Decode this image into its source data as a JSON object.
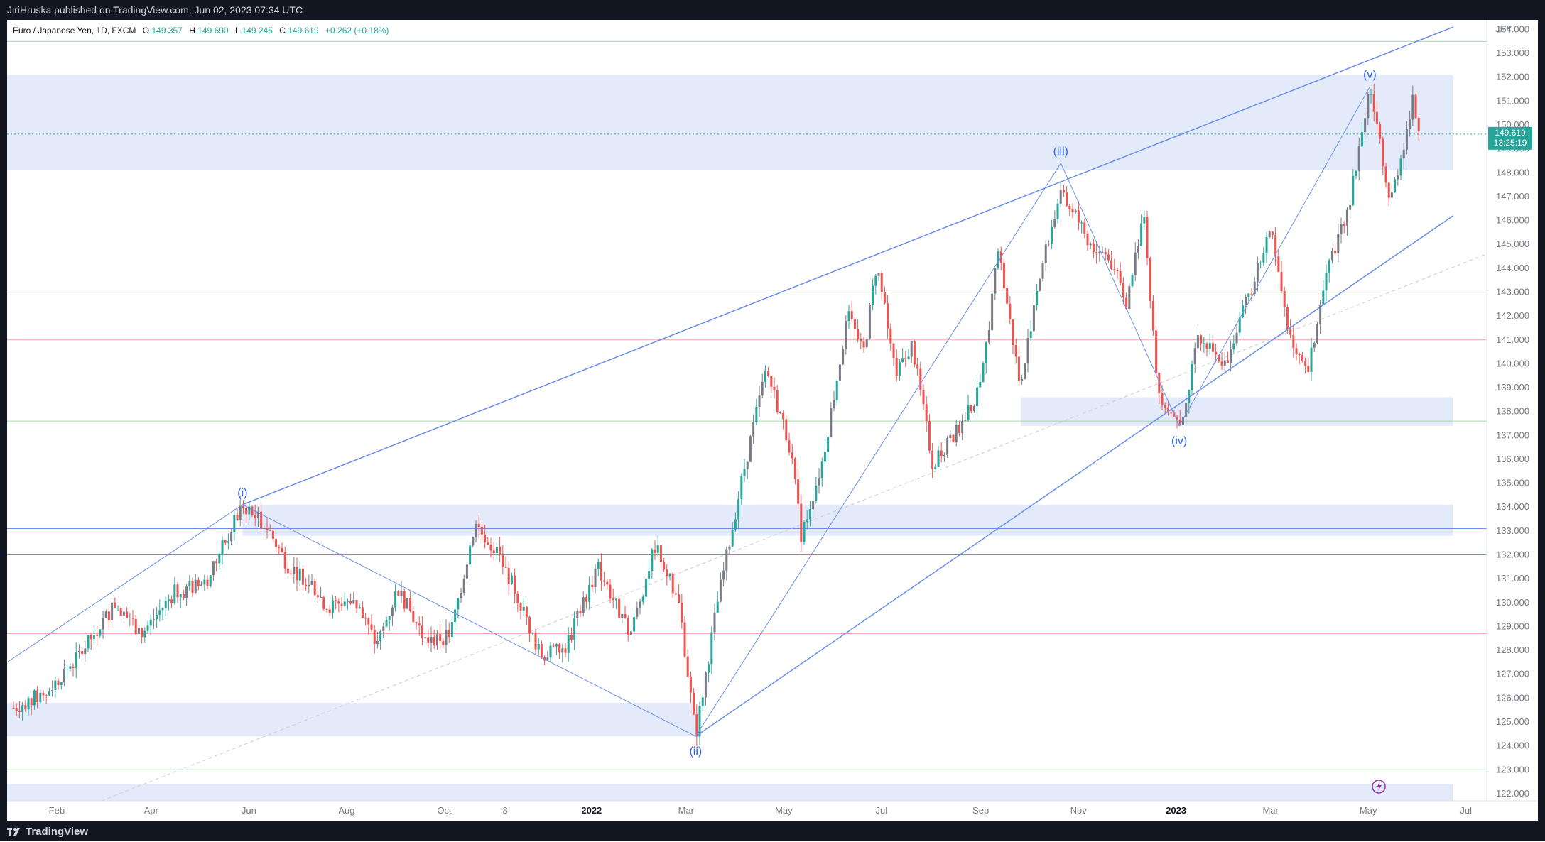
{
  "header": {
    "publisher_line": "JiriHruska published on TradingView.com, Jun 02, 2023 07:34 UTC"
  },
  "footer": {
    "brand": "TradingView"
  },
  "symbol": {
    "name": "Euro / Japanese Yen, 1D, FXCM",
    "open_label": "O",
    "open": "149.357",
    "high_label": "H",
    "high": "149.690",
    "low_label": "L",
    "low": "149.245",
    "close_label": "C",
    "close": "149.619",
    "change": "+0.262 (+0.18%)"
  },
  "currency": "JPY",
  "last_price_label": {
    "price": "149.619",
    "countdown": "13:25:19"
  },
  "colors": {
    "up": "#26a69a",
    "down": "#ef5350",
    "neutral_candle": "#787b86",
    "wave_line": "#6b8ee8",
    "zone_fill": "#e3ebfb",
    "last_price": "#26a69a"
  },
  "chart_data": {
    "type": "candlestick",
    "title": "Euro / Japanese Yen, 1D, FXCM",
    "y_axis_ticks": [
      "154.000",
      "153.000",
      "152.000",
      "151.000",
      "150.000",
      "149.000",
      "148.000",
      "147.000",
      "146.000",
      "145.000",
      "144.000",
      "143.000",
      "142.000",
      "141.000",
      "140.000",
      "139.000",
      "138.000",
      "137.000",
      "136.000",
      "135.000",
      "134.000",
      "133.000",
      "132.000",
      "131.000",
      "130.000",
      "129.000",
      "128.000",
      "127.000",
      "126.000",
      "125.000",
      "124.000",
      "123.000",
      "122.000"
    ],
    "ylim": [
      121.7,
      154.4
    ],
    "x_axis_ticks": [
      {
        "label": "Feb",
        "date": "2021-02-01",
        "bold": false
      },
      {
        "label": "Apr",
        "date": "2021-04-01",
        "bold": false
      },
      {
        "label": "Jun",
        "date": "2021-06-01",
        "bold": false
      },
      {
        "label": "Aug",
        "date": "2021-08-01",
        "bold": false
      },
      {
        "label": "Oct",
        "date": "2021-10-01",
        "bold": false
      },
      {
        "label": "8",
        "date": "2021-11-08",
        "bold": false
      },
      {
        "label": "2022",
        "date": "2022-01-01",
        "bold": true
      },
      {
        "label": "Mar",
        "date": "2022-03-01",
        "bold": false
      },
      {
        "label": "May",
        "date": "2022-05-01",
        "bold": false
      },
      {
        "label": "Jul",
        "date": "2022-07-01",
        "bold": false
      },
      {
        "label": "Sep",
        "date": "2022-09-01",
        "bold": false
      },
      {
        "label": "Nov",
        "date": "2022-11-01",
        "bold": false
      },
      {
        "label": "2023",
        "date": "2023-01-01",
        "bold": true
      },
      {
        "label": "Mar",
        "date": "2023-03-01",
        "bold": false
      },
      {
        "label": "May",
        "date": "2023-05-01",
        "bold": false
      },
      {
        "label": "Jul",
        "date": "2023-07-01",
        "bold": false
      }
    ],
    "price_path": [
      [
        "2021-01-05",
        125.6
      ],
      [
        "2021-01-25",
        126.2
      ],
      [
        "2021-02-15",
        127.8
      ],
      [
        "2021-03-10",
        130.0
      ],
      [
        "2021-03-25",
        128.6
      ],
      [
        "2021-04-15",
        130.4
      ],
      [
        "2021-05-05",
        130.8
      ],
      [
        "2021-05-28",
        134.1
      ],
      [
        "2021-06-12",
        133.2
      ],
      [
        "2021-06-25",
        131.6
      ],
      [
        "2021-07-10",
        130.8
      ],
      [
        "2021-07-20",
        129.8
      ],
      [
        "2021-08-05",
        130.2
      ],
      [
        "2021-08-20",
        128.2
      ],
      [
        "2021-09-02",
        130.6
      ],
      [
        "2021-09-20",
        128.3
      ],
      [
        "2021-10-05",
        128.7
      ],
      [
        "2021-10-20",
        133.3
      ],
      [
        "2021-11-02",
        132.2
      ],
      [
        "2021-11-15",
        130.4
      ],
      [
        "2021-11-30",
        127.8
      ],
      [
        "2021-12-15",
        128.0
      ],
      [
        "2022-01-05",
        131.5
      ],
      [
        "2022-01-25",
        128.6
      ],
      [
        "2022-02-10",
        132.5
      ],
      [
        "2022-02-25",
        129.8
      ],
      [
        "2022-03-07",
        124.4
      ],
      [
        "2022-03-20",
        129.8
      ],
      [
        "2022-04-05",
        135.2
      ],
      [
        "2022-04-20",
        139.8
      ],
      [
        "2022-05-05",
        136.5
      ],
      [
        "2022-05-12",
        132.8
      ],
      [
        "2022-05-25",
        135.9
      ],
      [
        "2022-06-10",
        142.0
      ],
      [
        "2022-06-20",
        140.5
      ],
      [
        "2022-06-28",
        144.2
      ],
      [
        "2022-07-10",
        139.5
      ],
      [
        "2022-07-20",
        140.8
      ],
      [
        "2022-08-02",
        135.8
      ],
      [
        "2022-08-18",
        137.2
      ],
      [
        "2022-09-01",
        139.0
      ],
      [
        "2022-09-12",
        144.8
      ],
      [
        "2022-09-26",
        138.9
      ],
      [
        "2022-10-05",
        142.9
      ],
      [
        "2022-10-20",
        147.0
      ],
      [
        "2022-10-28",
        146.5
      ],
      [
        "2022-11-10",
        144.8
      ],
      [
        "2022-11-20",
        144.5
      ],
      [
        "2022-12-01",
        142.5
      ],
      [
        "2022-12-12",
        146.5
      ],
      [
        "2022-12-20",
        139.0
      ],
      [
        "2023-01-03",
        137.4
      ],
      [
        "2023-01-15",
        141.0
      ],
      [
        "2023-02-01",
        140.0
      ],
      [
        "2023-02-15",
        142.8
      ],
      [
        "2023-03-01",
        145.6
      ],
      [
        "2023-03-15",
        140.5
      ],
      [
        "2023-03-24",
        139.5
      ],
      [
        "2023-04-05",
        143.8
      ],
      [
        "2023-04-20",
        147.0
      ],
      [
        "2023-05-02",
        151.6
      ],
      [
        "2023-05-15",
        146.8
      ],
      [
        "2023-05-29",
        151.0
      ],
      [
        "2023-06-02",
        149.6
      ]
    ],
    "annotations": [
      {
        "label": "(i)",
        "date": "2021-05-28",
        "price": 134.1
      },
      {
        "label": "(ii)",
        "date": "2022-03-07",
        "price": 124.4
      },
      {
        "label": "(iii)",
        "date": "2022-10-21",
        "price": 148.4
      },
      {
        "label": "(iv)",
        "date": "2023-01-03",
        "price": 137.4
      },
      {
        "label": "(v)",
        "date": "2023-05-02",
        "price": 151.6
      }
    ],
    "channel_lines": [
      {
        "from": [
          "2021-05-28",
          134.1
        ],
        "to": [
          "2023-06-23",
          154.1
        ]
      },
      {
        "from": [
          "2022-03-07",
          124.4
        ],
        "to": [
          "2023-06-23",
          146.2
        ]
      }
    ],
    "zones": [
      {
        "from_date": "2021-01-01",
        "to_date": "2023-06-23",
        "low": 148.1,
        "high": 152.1
      },
      {
        "from_date": "2021-05-28",
        "to_date": "2023-06-23",
        "low": 132.8,
        "high": 134.1
      },
      {
        "from_date": "2021-01-01",
        "to_date": "2022-03-07",
        "low": 124.4,
        "high": 125.8
      },
      {
        "from_date": "2022-09-26",
        "to_date": "2023-06-23",
        "low": 137.4,
        "high": 138.6
      },
      {
        "from_date": "2021-01-01",
        "to_date": "2023-06-23",
        "low": 121.7,
        "high": 122.4
      }
    ],
    "horizontal_lines": [
      {
        "price": 153.5,
        "color": "#a5d6a7"
      },
      {
        "price": 143.0,
        "color": "#f4a8a8"
      },
      {
        "price": 141.0,
        "color": "#f4a8a8"
      },
      {
        "price": 137.6,
        "color": "#a5d6a7"
      },
      {
        "price": 133.1,
        "color": "#6b8ee8"
      },
      {
        "price": 132.0,
        "color": "#6b8ee8"
      },
      {
        "price": 128.7,
        "color": "#f4a8a8"
      },
      {
        "price": 123.0,
        "color": "#a5d6a7"
      }
    ]
  }
}
